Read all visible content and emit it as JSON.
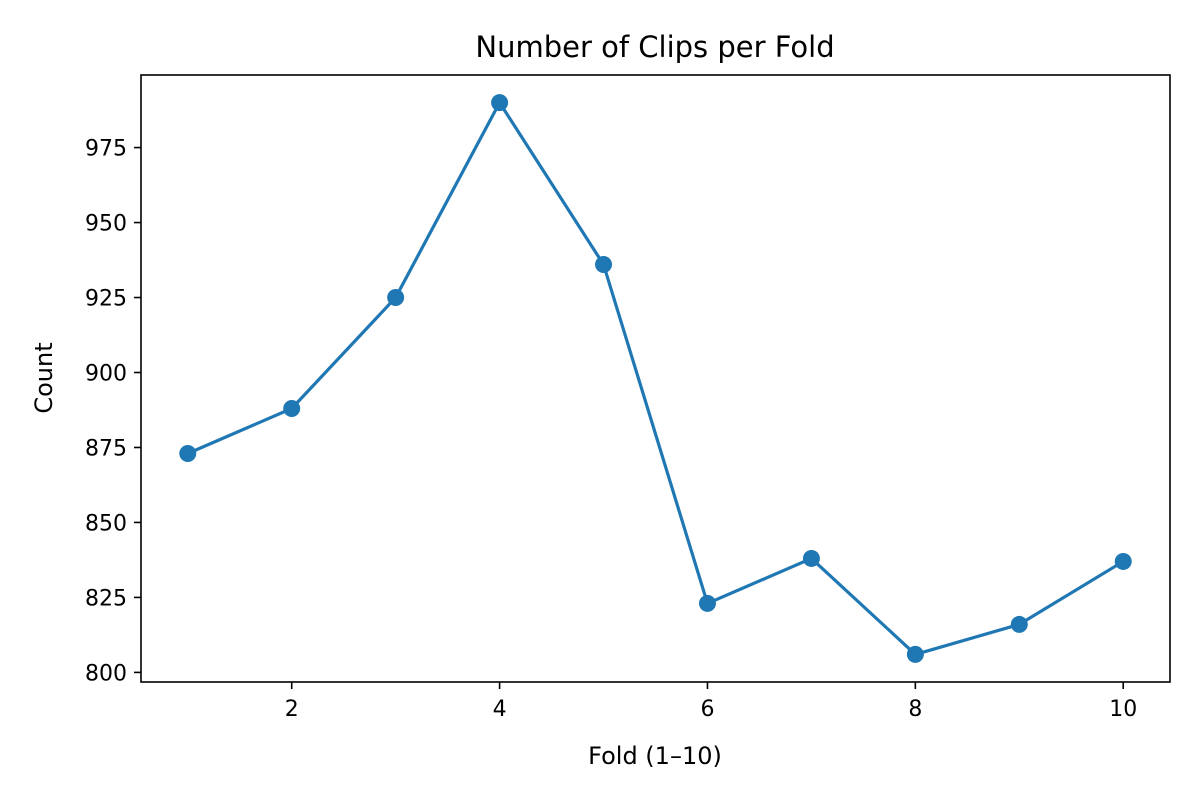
{
  "chart_data": {
    "type": "line",
    "title": "Number of Clips per Fold",
    "xlabel": "Fold (1–10)",
    "ylabel": "Count",
    "x": [
      1,
      2,
      3,
      4,
      5,
      6,
      7,
      8,
      9,
      10
    ],
    "series": [
      {
        "values": [
          873,
          888,
          925,
          990,
          936,
          823,
          838,
          806,
          816,
          837
        ],
        "color": "#1f77b4",
        "marker": "circle"
      }
    ],
    "xlim": [
      0.55,
      10.45
    ],
    "ylim": [
      796.8,
      999.2
    ],
    "xticks": [
      2,
      4,
      6,
      8,
      10
    ],
    "yticks": [
      800,
      825,
      850,
      875,
      900,
      925,
      950,
      975
    ],
    "grid": false,
    "legend": "none"
  }
}
